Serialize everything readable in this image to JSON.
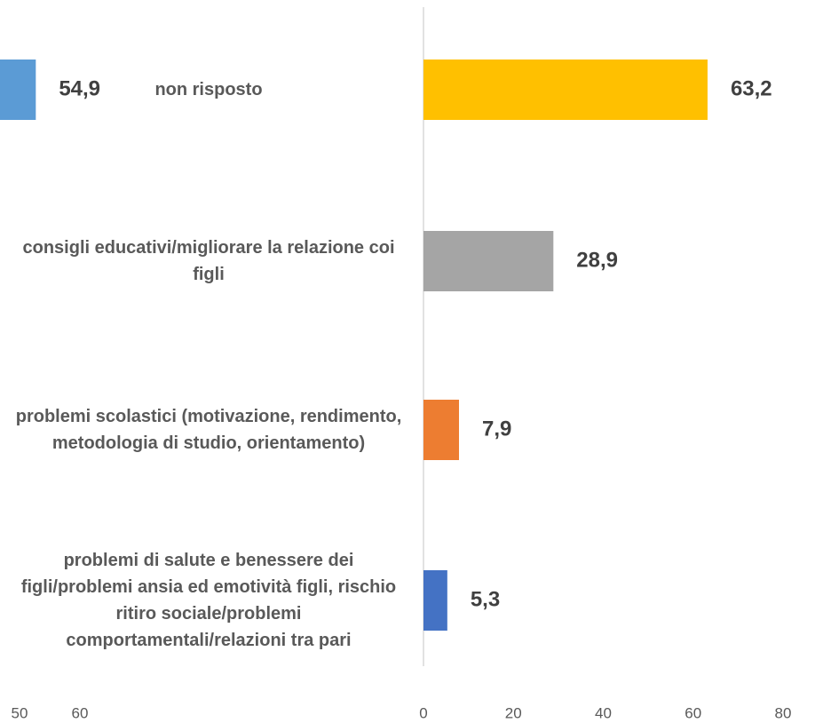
{
  "chart_data": [
    {
      "type": "bar",
      "orientation": "horizontal",
      "values": [
        54.9
      ],
      "value_labels": [
        "54,9"
      ],
      "color": "#5b9bd5",
      "xticks": [
        50,
        60
      ]
    },
    {
      "type": "bar",
      "orientation": "horizontal",
      "categories": [
        "non risposto",
        "consigli educativi/migliorare la relazione coi figli",
        "problemi scolastici (motivazione, rendimento, metodologia di studio, orientamento)",
        "problemi di salute e benessere dei figli/problemi ansia ed emotività figli, rischio ritiro sociale/problemi comportamentali/relazioni tra pari"
      ],
      "values": [
        63.2,
        28.9,
        7.9,
        5.3
      ],
      "value_labels": [
        "63,2",
        "28,9",
        "7,9",
        "5,3"
      ],
      "colors": [
        "#ffc000",
        "#a5a5a5",
        "#ed7d31",
        "#4472c4"
      ],
      "xlim": [
        0,
        80
      ],
      "xticks": [
        0,
        20,
        40,
        60,
        80
      ]
    }
  ]
}
